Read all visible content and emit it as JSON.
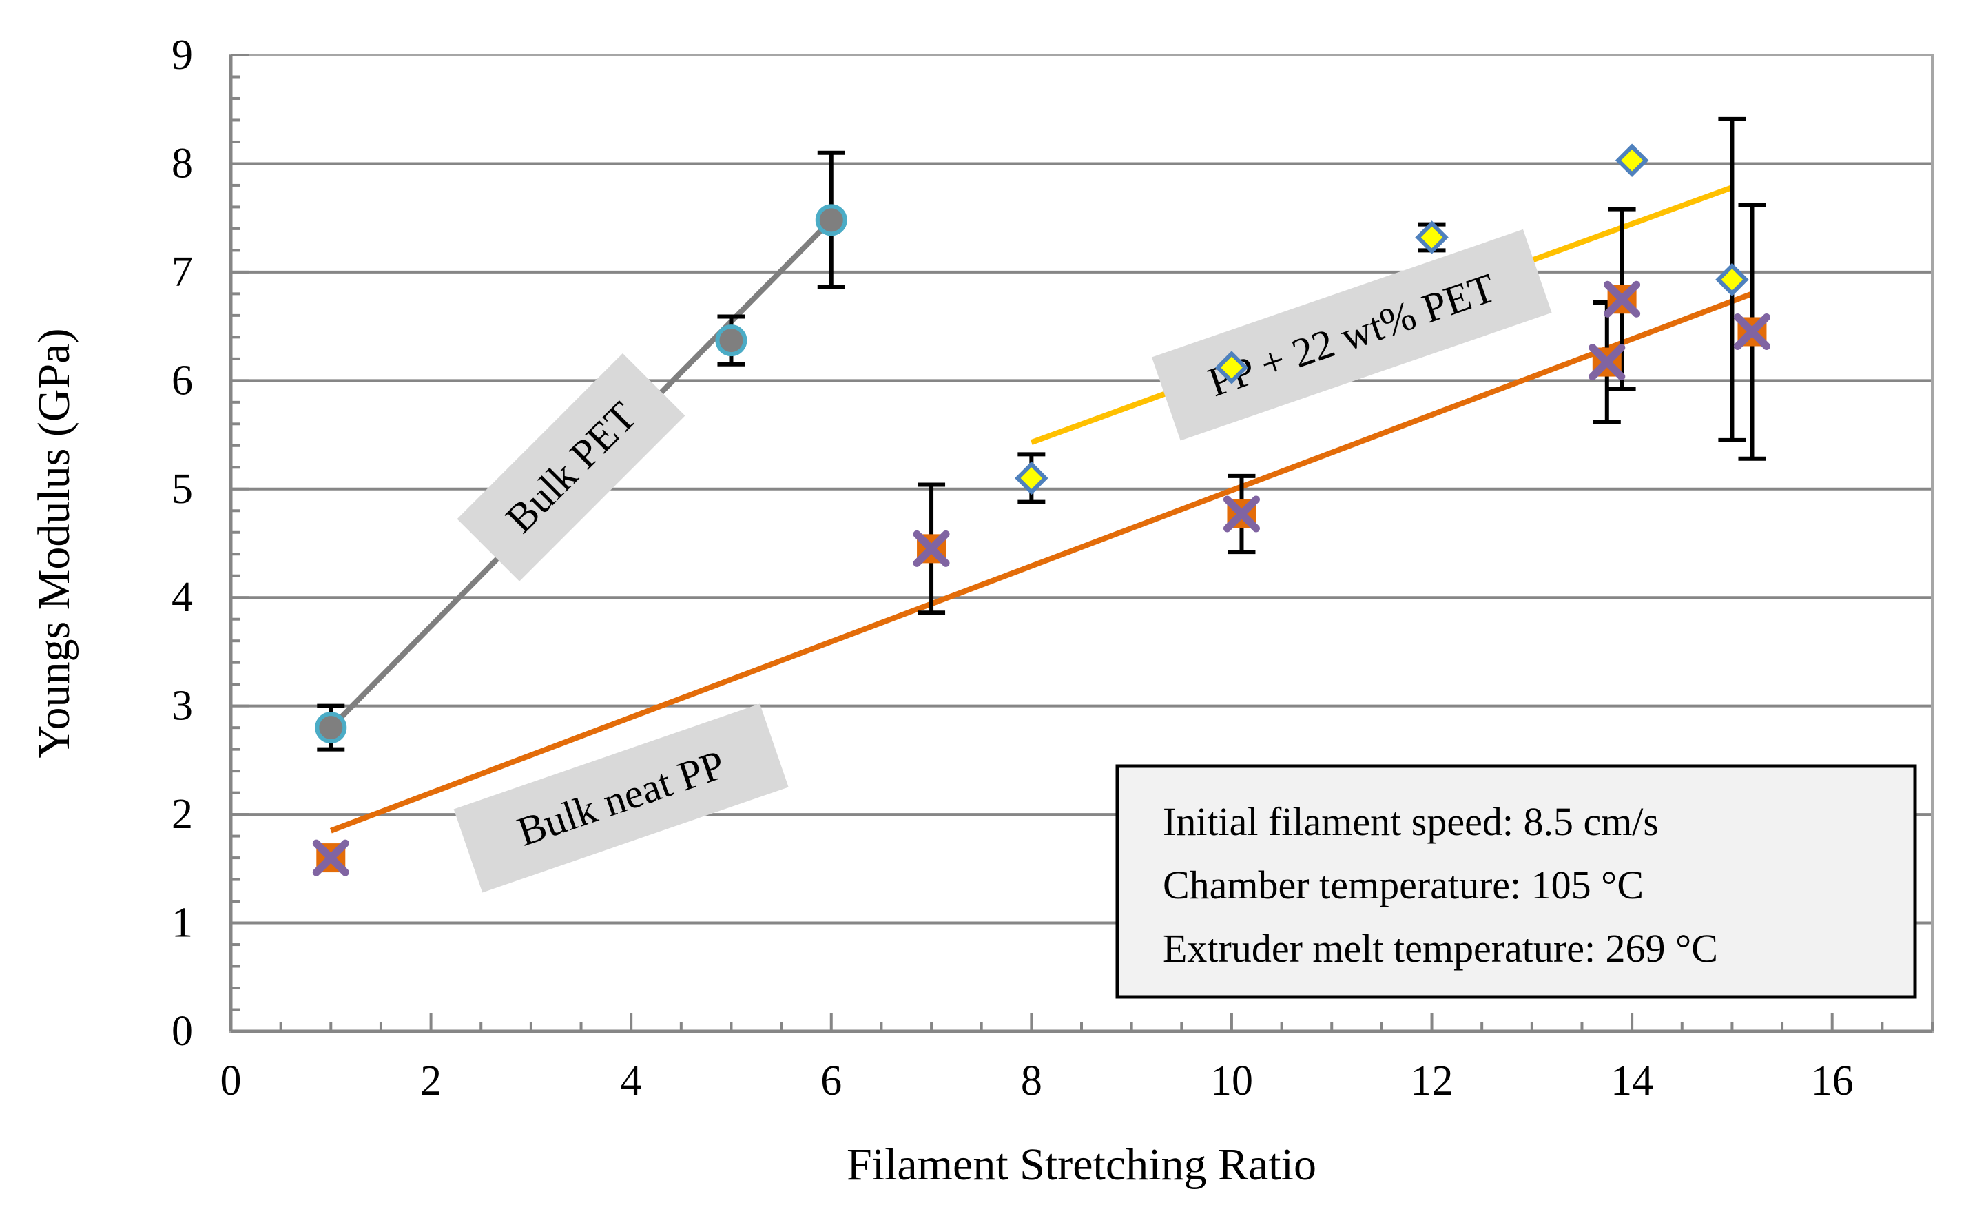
{
  "chart_data": {
    "type": "scatter",
    "title": "",
    "xlabel": "Filament Stretching Ratio",
    "ylabel": "Youngs Modulus (GPa)",
    "xlim": [
      0,
      17
    ],
    "ylim": [
      0,
      9
    ],
    "xticks": [
      0,
      2,
      4,
      6,
      8,
      10,
      12,
      14,
      16
    ],
    "yticks": [
      0,
      1,
      2,
      3,
      4,
      5,
      6,
      7,
      8,
      9
    ],
    "grid": "horizontal",
    "series": [
      {
        "name": "Bulk PET",
        "marker": "circle",
        "color": "#7f7f7f",
        "edge_color": "#4bacc6",
        "points": [
          {
            "x": 1,
            "y": 2.8,
            "err": 0.2
          },
          {
            "x": 5,
            "y": 6.37,
            "err": 0.22
          },
          {
            "x": 6,
            "y": 7.48,
            "err": 0.62
          }
        ],
        "trend": {
          "x": [
            1,
            6
          ],
          "y": [
            2.8,
            7.48
          ],
          "color": "#7f7f7f"
        }
      },
      {
        "name": "PP + 22 wt% PET",
        "marker": "diamond",
        "color": "#ffff00",
        "edge_color": "#4f81bd",
        "points": [
          {
            "x": 8,
            "y": 5.1,
            "err": 0.22
          },
          {
            "x": 10,
            "y": 6.12,
            "err": 0
          },
          {
            "x": 12,
            "y": 7.32,
            "err": 0.12
          },
          {
            "x": 14,
            "y": 8.03,
            "err": 0
          },
          {
            "x": 15,
            "y": 6.93,
            "err": 1.48
          }
        ],
        "trend": {
          "x": [
            8,
            15
          ],
          "y": [
            5.43,
            7.78
          ],
          "color": "#ffc000"
        }
      },
      {
        "name": "Bulk neat PP",
        "marker": "x-square",
        "color": "#e36c09",
        "edge_color": "#8064a2",
        "points": [
          {
            "x": 1,
            "y": 1.6,
            "err": 0
          },
          {
            "x": 7,
            "y": 4.45,
            "err": 0.59
          },
          {
            "x": 10.1,
            "y": 4.77,
            "err": 0.35
          },
          {
            "x": 13.75,
            "y": 6.17,
            "err": 0.55
          },
          {
            "x": 13.9,
            "y": 6.75,
            "err": 0.83
          },
          {
            "x": 15.2,
            "y": 6.45,
            "err": 1.17
          }
        ],
        "trend": {
          "x": [
            1,
            15.2
          ],
          "y": [
            1.85,
            6.8
          ],
          "color": "#e36c09"
        }
      }
    ],
    "annotations": [
      {
        "text": "Bulk  PET",
        "x": 3.4,
        "y": 5.2,
        "rotation": -45
      },
      {
        "text": "PP + 22 wt% PET",
        "x": 11.2,
        "y": 6.42,
        "rotation": -19
      },
      {
        "text": "Bulk neat PP",
        "x": 3.9,
        "y": 2.15,
        "rotation": -19
      }
    ],
    "info_box": {
      "lines": [
        "Initial filament speed: 8.5 cm/s",
        "Chamber temperature: 105 °C",
        "Extruder melt temperature: 269 °C"
      ],
      "placement": "bottom-right"
    }
  }
}
